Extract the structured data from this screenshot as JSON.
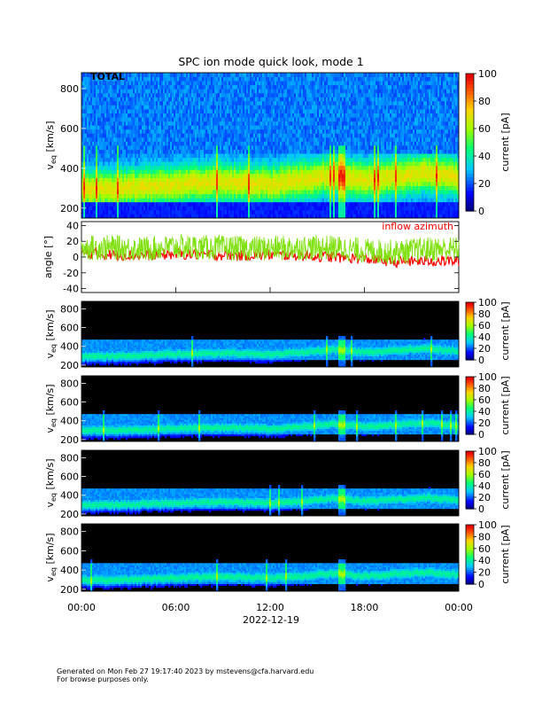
{
  "title": "SPC ion mode quick look, mode 1",
  "total_label": "TOTAL",
  "colorbar_label": "current [pA]",
  "colorbar_ticks": [
    "0",
    "20",
    "40",
    "60",
    "80",
    "100"
  ],
  "veq_label_main": "v",
  "veq_label_sub": "eq",
  "veq_label_unit": " [km/s]",
  "angle_label": "angle [°]",
  "inflow_label": "inflow azimuth",
  "x_ticks": [
    "00:00",
    "06:00",
    "12:00",
    "18:00",
    "00:00"
  ],
  "x_date": "2022-12-19",
  "footer": {
    "line1": "Generated on Mon Feb 27 19:17:40 2023 by mstevens@cfa.harvard.edu",
    "line2": "For browse purposes only."
  },
  "colors": {
    "inflow": "#ff0000",
    "angle_trace": "#80e010"
  },
  "chart_data": [
    {
      "type": "heatmap",
      "panel": "total",
      "title": "SPC ion mode quick look, mode 1",
      "label": "TOTAL",
      "xlabel": "2022-12-19",
      "ylabel": "v_eq [km/s]",
      "xlim": [
        "2022-12-19 00:00",
        "2022-12-20 00:00"
      ],
      "ylim": [
        150,
        880
      ],
      "yticks": [
        200,
        400,
        600,
        800
      ],
      "zlabel": "current [pA]",
      "zlim": [
        0,
        100
      ],
      "colormap": "rainbow",
      "peak_velocity_kms": {
        "times": [
          "00:00",
          "02:00",
          "04:00",
          "06:00",
          "08:00",
          "10:00",
          "12:00",
          "14:00",
          "16:00",
          "18:00",
          "20:00",
          "22:00",
          "24:00"
        ],
        "values": [
          300,
          300,
          310,
          320,
          330,
          330,
          320,
          340,
          370,
          340,
          360,
          380,
          350
        ]
      }
    },
    {
      "type": "line",
      "panel": "angle",
      "ylabel": "angle [°]",
      "ylim": [
        -45,
        45
      ],
      "yticks": [
        -40,
        -20,
        0,
        20,
        40
      ],
      "series": [
        {
          "name": "inflow azimuth",
          "color": "#ff0000",
          "times": [
            "00:00",
            "02:00",
            "04:00",
            "06:00",
            "08:00",
            "10:00",
            "12:00",
            "14:00",
            "16:00",
            "18:00",
            "20:00",
            "22:00",
            "24:00"
          ],
          "values": [
            5,
            3,
            2,
            4,
            3,
            2,
            3,
            2,
            0,
            -2,
            -6,
            -5,
            -5
          ]
        },
        {
          "color": "#80e010",
          "times": [
            "00:00",
            "02:00",
            "04:00",
            "06:00",
            "08:00",
            "10:00",
            "12:00",
            "14:00",
            "16:00",
            "18:00",
            "20:00",
            "22:00",
            "24:00"
          ],
          "values": [
            12,
            12,
            10,
            13,
            12,
            11,
            11,
            12,
            12,
            8,
            6,
            10,
            10
          ]
        }
      ]
    },
    {
      "type": "heatmap",
      "panel": "channel-1",
      "ylabel": "v_eq [km/s]",
      "ylim": [
        180,
        880
      ],
      "yticks": [
        200,
        400,
        600,
        800
      ],
      "zlabel": "current [pA]",
      "zlim": [
        0,
        100
      ],
      "colormap": "rainbow (black background)"
    },
    {
      "type": "heatmap",
      "panel": "channel-2",
      "ylabel": "v_eq [km/s]",
      "ylim": [
        180,
        880
      ],
      "yticks": [
        200,
        400,
        600,
        800
      ],
      "zlabel": "current [pA]",
      "zlim": [
        0,
        100
      ],
      "colormap": "rainbow (black background)"
    },
    {
      "type": "heatmap",
      "panel": "channel-3",
      "ylabel": "v_eq [km/s]",
      "ylim": [
        180,
        880
      ],
      "yticks": [
        200,
        400,
        600,
        800
      ],
      "zlabel": "current [pA]",
      "zlim": [
        0,
        100
      ],
      "colormap": "rainbow (black background)"
    },
    {
      "type": "heatmap",
      "panel": "channel-4",
      "ylabel": "v_eq [km/s]",
      "ylim": [
        180,
        880
      ],
      "yticks": [
        200,
        400,
        600,
        800
      ],
      "zlabel": "current [pA]",
      "zlim": [
        0,
        100
      ],
      "colormap": "rainbow (black background)"
    }
  ]
}
